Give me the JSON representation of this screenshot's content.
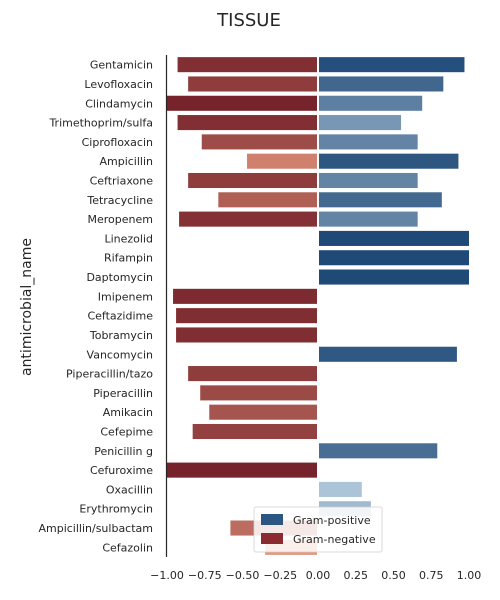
{
  "chart_data": {
    "type": "bar",
    "orientation": "horizontal",
    "title": "TISSUE",
    "xlabel": "",
    "ylabel": "antimicrobial_name",
    "xlim": [
      -1.0,
      1.0
    ],
    "xticks": [
      "−1.00",
      "−0.75",
      "−0.50",
      "−0.25",
      "0.00",
      "0.25",
      "0.50",
      "0.75",
      "1.00"
    ],
    "xtick_values": [
      -1.0,
      -0.75,
      -0.5,
      -0.25,
      0.0,
      0.25,
      0.5,
      0.75,
      1.0
    ],
    "legend_position": "lower-right",
    "categories": [
      "Gentamicin",
      "Levofloxacin",
      "Clindamycin",
      "Trimethoprim/sulfa",
      "Ciprofloxacin",
      "Ampicillin",
      "Ceftriaxone",
      "Tetracycline",
      "Meropenem",
      "Linezolid",
      "Rifampin",
      "Daptomycin",
      "Imipenem",
      "Ceftazidime",
      "Tobramycin",
      "Vancomycin",
      "Piperacillin/tazo",
      "Piperacillin",
      "Amikacin",
      "Cefepime",
      "Penicillin g",
      "Cefuroxime",
      "Oxacillin",
      "Erythromycin",
      "Ampicillin/sulbactam",
      "Cefazolin"
    ],
    "series": [
      {
        "name": "Gram-positive",
        "color": "#2b5582",
        "values": [
          0.97,
          0.83,
          0.69,
          0.55,
          0.66,
          0.93,
          0.66,
          0.82,
          0.66,
          1.0,
          1.0,
          1.0,
          null,
          null,
          null,
          0.92,
          null,
          null,
          null,
          null,
          0.79,
          null,
          0.29,
          0.35,
          null,
          null
        ]
      },
      {
        "name": "Gram-negative",
        "color": "#8b2a31",
        "values": [
          -0.93,
          -0.86,
          -1.0,
          -0.93,
          -0.77,
          -0.47,
          -0.86,
          -0.66,
          -0.92,
          null,
          null,
          null,
          -0.96,
          -0.94,
          -0.94,
          null,
          -0.86,
          -0.78,
          -0.72,
          -0.83,
          null,
          -1.0,
          null,
          null,
          -0.58,
          -0.35
        ]
      }
    ]
  }
}
